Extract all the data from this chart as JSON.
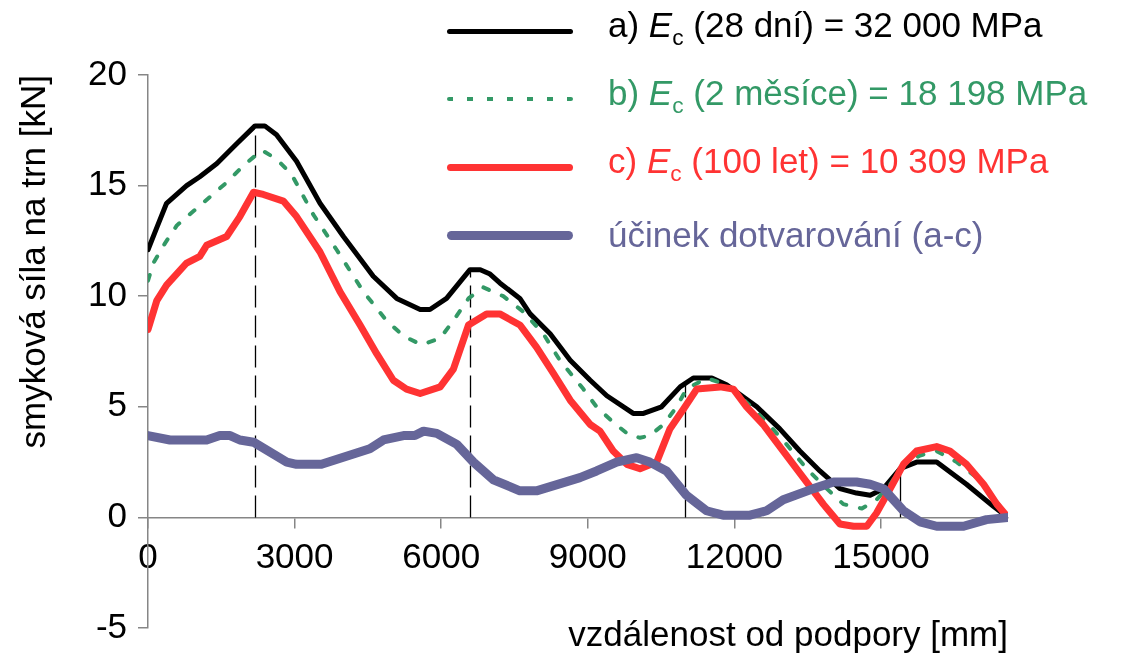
{
  "chart_data": {
    "type": "line",
    "xlabel": "vzdálenost od podpory [mm]",
    "ylabel": "smyková síla na trn [kN]",
    "xlim": [
      0,
      17600
    ],
    "xticks": [
      0,
      3000,
      6000,
      9000,
      12000,
      15000
    ],
    "ylim": [
      -5,
      20
    ],
    "yticks": [
      -5,
      0,
      5,
      10,
      15,
      20
    ],
    "legend": "top right",
    "marker": "none",
    "series": [
      {
        "name": "a) E$_{c}$ (28 dní) = 32 000 MPa",
        "color": "#000000",
        "line_style": "solid",
        "x": [
          0,
          180,
          380,
          790,
          1060,
          1410,
          1820,
          2190,
          2390,
          2630,
          3040,
          3520,
          4000,
          4610,
          5090,
          5570,
          5770,
          6110,
          6590,
          6800,
          7000,
          7200,
          7610,
          7820,
          8230,
          8640,
          9050,
          9390,
          9930,
          10140,
          10510,
          10890,
          11160,
          11540,
          11840,
          12460,
          12930,
          13340,
          13750,
          14160,
          14500,
          14780,
          15050,
          15390,
          15730,
          16140,
          16750,
          17300,
          17600
        ],
        "values": [
          12.1,
          13.1,
          14.2,
          15.0,
          15.4,
          16.0,
          16.9,
          17.7,
          17.7,
          17.3,
          16.1,
          14.2,
          12.7,
          10.9,
          9.9,
          9.4,
          9.4,
          9.9,
          11.2,
          11.2,
          11.0,
          10.6,
          9.9,
          9.2,
          8.3,
          7.1,
          6.2,
          5.5,
          4.7,
          4.7,
          5.0,
          5.9,
          6.3,
          6.3,
          6.0,
          5.0,
          4.0,
          3.0,
          2.1,
          1.3,
          1.1,
          1.0,
          1.3,
          2.2,
          2.5,
          2.5,
          1.5,
          0.5,
          0
        ]
      },
      {
        "name": "b) E$_{c}$ (2 měsíce) = 18 198 MPa",
        "color": "#339966",
        "line_style": "dotted",
        "x": [
          0,
          110,
          350,
          590,
          960,
          1640,
          1950,
          2330,
          2630,
          2940,
          3380,
          3860,
          4410,
          4880,
          5230,
          5600,
          5980,
          6250,
          6560,
          6860,
          7270,
          7680,
          8090,
          8430,
          8910,
          9180,
          9520,
          9860,
          10070,
          10270,
          10550,
          10820,
          11020,
          11430,
          11840,
          12250,
          12660,
          13070,
          13480,
          13890,
          14230,
          14610,
          14910,
          15190,
          15460,
          15800,
          16140,
          16550,
          16960,
          17300,
          17600
        ],
        "values": [
          10.7,
          11.5,
          12.4,
          13.2,
          13.9,
          15.2,
          15.9,
          16.6,
          16.2,
          15.5,
          13.7,
          12.1,
          10.2,
          8.9,
          8.2,
          7.8,
          8.1,
          8.9,
          9.9,
          10.4,
          10.0,
          9.3,
          8.3,
          7.1,
          5.8,
          5.0,
          4.3,
          3.7,
          3.6,
          3.7,
          4.2,
          5.0,
          5.8,
          6.3,
          6.0,
          5.2,
          4.3,
          3.3,
          2.2,
          1.3,
          0.6,
          0.4,
          0.8,
          1.5,
          2.4,
          2.8,
          3.0,
          2.5,
          1.8,
          0.9,
          0
        ]
      },
      {
        "name": "c) E$_{c}$ (100 let) = 10 309 MPa",
        "color": "#ff3333",
        "line_style": "solid",
        "x": [
          0,
          180,
          380,
          790,
          1060,
          1200,
          1610,
          1880,
          2160,
          2360,
          2770,
          3040,
          3520,
          3930,
          4340,
          4680,
          5020,
          5290,
          5570,
          5980,
          6250,
          6560,
          6930,
          7200,
          7610,
          7950,
          8300,
          8640,
          9050,
          9250,
          9520,
          9800,
          10070,
          10410,
          10680,
          10960,
          11230,
          11710,
          11980,
          12250,
          12590,
          13000,
          13410,
          13820,
          14160,
          14440,
          14710,
          14910,
          15190,
          15460,
          15730,
          16140,
          16410,
          16750,
          17100,
          17370,
          17600
        ],
        "values": [
          8.5,
          9.8,
          10.5,
          11.5,
          11.8,
          12.3,
          12.7,
          13.6,
          14.7,
          14.6,
          14.3,
          13.6,
          12.0,
          10.2,
          8.7,
          7.4,
          6.2,
          5.8,
          5.6,
          5.9,
          6.7,
          8.7,
          9.2,
          9.2,
          8.7,
          7.7,
          6.5,
          5.3,
          4.2,
          3.9,
          3.0,
          2.4,
          2.2,
          2.5,
          4.0,
          4.9,
          5.8,
          5.9,
          5.8,
          5.0,
          4.2,
          3.0,
          1.8,
          0.6,
          -0.3,
          -0.4,
          -0.4,
          0.2,
          1.3,
          2.4,
          3.0,
          3.2,
          3.0,
          2.4,
          1.5,
          0.6,
          0
        ]
      },
      {
        "name": "účinek dotvarování (a-c)",
        "color": "#666699",
        "line_style": "solid",
        "x": [
          0,
          450,
          1200,
          1470,
          1680,
          1880,
          2160,
          2840,
          3040,
          3550,
          4540,
          4820,
          5230,
          5460,
          5640,
          5910,
          6320,
          6660,
          7070,
          7610,
          7950,
          8840,
          9180,
          9590,
          10000,
          10270,
          10610,
          11020,
          11430,
          11770,
          12320,
          12660,
          13000,
          13620,
          14030,
          14500,
          14780,
          15050,
          15460,
          15800,
          16140,
          16690,
          17160,
          17600
        ],
        "values": [
          3.7,
          3.5,
          3.5,
          3.7,
          3.7,
          3.5,
          3.4,
          2.5,
          2.4,
          2.4,
          3.1,
          3.5,
          3.7,
          3.7,
          3.9,
          3.8,
          3.3,
          2.5,
          1.7,
          1.2,
          1.2,
          1.8,
          2.1,
          2.5,
          2.7,
          2.5,
          2.1,
          1.0,
          0.3,
          0.1,
          0.1,
          0.3,
          0.8,
          1.3,
          1.6,
          1.6,
          1.5,
          1.3,
          0.3,
          -0.2,
          -0.4,
          -0.4,
          -0.1,
          0
        ]
      }
    ],
    "ref_lines": [
      {
        "axis": "x",
        "value": 2200,
        "color": "#000000",
        "line_style": "dashed"
      },
      {
        "axis": "x",
        "value": 6600,
        "color": "#000000",
        "line_style": "dashed"
      },
      {
        "axis": "x",
        "value": 11000,
        "color": "#000000",
        "line_style": "dashed"
      },
      {
        "axis": "x",
        "value": 15400,
        "color": "#000000",
        "line_style": "solid"
      }
    ]
  }
}
